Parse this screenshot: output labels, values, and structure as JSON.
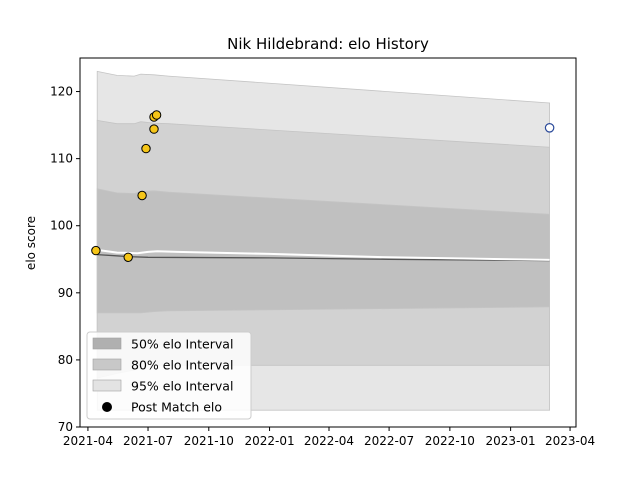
{
  "chart_data": {
    "type": "line",
    "title": "Nik Hildebrand: elo History",
    "xlabel": "",
    "ylabel": "elo score",
    "xlim": [
      "2021-03-20",
      "2023-04-10"
    ],
    "ylim": [
      70,
      125
    ],
    "x_ticks": [
      "2021-04",
      "2021-07",
      "2021-10",
      "2022-01",
      "2022-04",
      "2022-07",
      "2022-10",
      "2023-01",
      "2023-04"
    ],
    "y_ticks": [
      70,
      80,
      90,
      100,
      110,
      120
    ],
    "band_x": [
      "2021-04-15",
      "2021-05-15",
      "2021-06-10",
      "2021-06-20",
      "2021-07-10",
      "2021-08-01",
      "2023-03-01"
    ],
    "intervals": [
      {
        "name": "95% elo Interval",
        "color": "#e6e6e6",
        "upper": [
          123.0,
          122.4,
          122.3,
          122.6,
          122.5,
          122.3,
          118.3
        ],
        "lower": [
          72.5,
          72.5,
          72.5,
          72.5,
          72.5,
          72.5,
          72.5
        ]
      },
      {
        "name": "80% elo Interval",
        "color": "#d2d2d2",
        "upper": [
          115.7,
          115.2,
          115.2,
          115.5,
          115.3,
          115.2,
          111.7
        ],
        "lower": [
          77.3,
          78.0,
          78.5,
          79.0,
          79.2,
          79.2,
          79.2
        ]
      },
      {
        "name": "50% elo Interval",
        "color": "#c0c0c0",
        "upper": [
          105.5,
          104.9,
          104.8,
          105.1,
          105.2,
          105.0,
          101.7
        ],
        "lower": [
          87.0,
          87.0,
          87.0,
          87.0,
          87.2,
          87.3,
          87.9
        ]
      }
    ],
    "mean_line": {
      "x": [
        "2021-04-15",
        "2021-05-15",
        "2021-06-15",
        "2021-07-01",
        "2021-07-15",
        "2021-08-15",
        "2022-01-01",
        "2022-07-01",
        "2023-03-01"
      ],
      "y": [
        96.4,
        96.0,
        95.9,
        96.1,
        96.2,
        96.1,
        95.8,
        95.3,
        94.9
      ]
    },
    "estimate_line": {
      "x": [
        "2021-04-15",
        "2021-06-01",
        "2021-07-01",
        "2022-01-01",
        "2022-07-01",
        "2023-03-01"
      ],
      "y": [
        95.7,
        95.4,
        95.3,
        95.2,
        95.0,
        94.8
      ]
    },
    "points": {
      "name": "Post Match elo",
      "x": [
        "2021-04-13",
        "2021-06-01",
        "2021-06-22",
        "2021-06-28",
        "2021-07-10",
        "2021-07-10",
        "2021-07-14"
      ],
      "y": [
        96.3,
        95.3,
        104.5,
        111.5,
        114.4,
        116.2,
        116.5
      ],
      "color": "#f5c518"
    },
    "projection": {
      "x": [
        "2023-03-01"
      ],
      "y": [
        114.6
      ],
      "color": "#2b4a9a"
    },
    "legend_placement": "lower-left",
    "legend": [
      {
        "label": "50% elo Interval",
        "color": "#b0b0b0"
      },
      {
        "label": "80% elo Interval",
        "color": "#c8c8c8"
      },
      {
        "label": "95% elo Interval",
        "color": "#e3e3e3"
      },
      {
        "label": "Post Match elo",
        "color": "#000000"
      }
    ],
    "grid": false
  }
}
